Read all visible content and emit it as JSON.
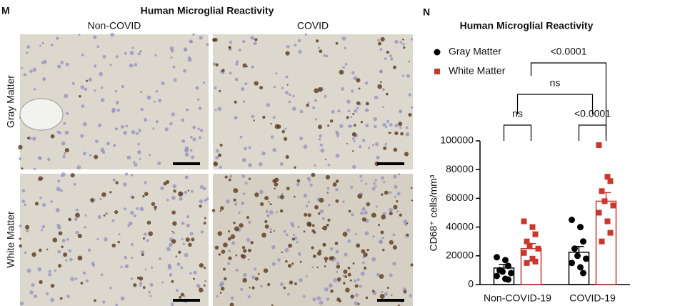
{
  "panel_m": {
    "label": "M",
    "title": "Human Microglial Reactivity",
    "columns": [
      "Non-COVID",
      "COVID"
    ],
    "rows": [
      "Gray Matter",
      "White Matter"
    ]
  },
  "chart_data": {
    "type": "bar",
    "panel_label": "N",
    "title": "Human Microglial Reactivity",
    "ylabel": "CD68⁺ cells/mm³",
    "categories": [
      "Non-COVID-19",
      "COVID-19"
    ],
    "ylim": [
      0,
      100000
    ],
    "yticks": [
      0,
      20000,
      40000,
      60000,
      80000,
      100000
    ],
    "series": [
      {
        "name": "Gray Matter",
        "color": "#000000",
        "marker": "circle",
        "values": [
          11500,
          22500
        ],
        "errors": [
          2500,
          4000
        ],
        "points": [
          [
            19000,
            17000,
            13000,
            10000,
            9000,
            8000,
            6000,
            4000,
            3500
          ],
          [
            45000,
            40000,
            30000,
            25000,
            20000,
            18000,
            15000,
            12000,
            8000
          ]
        ]
      },
      {
        "name": "White Matter",
        "color": "#c8382e",
        "marker": "square",
        "values": [
          25000,
          58000
        ],
        "errors": [
          3500,
          6000
        ],
        "points": [
          [
            44000,
            40000,
            35000,
            30000,
            27000,
            25000,
            22000,
            18000,
            16000,
            15000
          ],
          [
            97000,
            75000,
            72000,
            65000,
            58000,
            55000,
            50000,
            44000,
            36000,
            30000
          ]
        ]
      }
    ],
    "annotations": [
      "ns",
      "<0.0001",
      "ns",
      "<0.0001"
    ]
  }
}
